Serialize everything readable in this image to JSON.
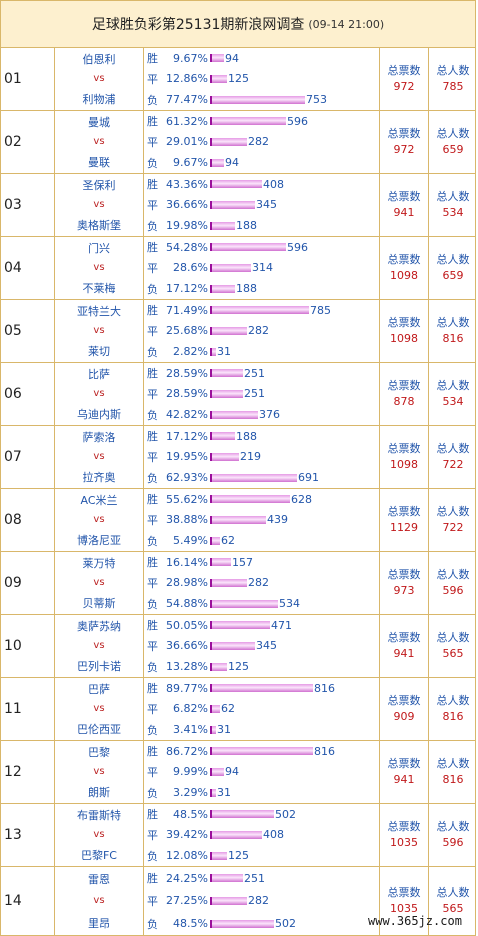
{
  "header": {
    "title": "足球胜负彩第25131期新浪网调查",
    "time": "(09-14 21:00)"
  },
  "labels": {
    "win": "胜",
    "draw": "平",
    "loss": "负",
    "vs": "vs",
    "total_votes": "总票数",
    "total_people": "总人数"
  },
  "matches": [
    {
      "no": "01",
      "home": "伯恩利",
      "away": "利物浦",
      "win_pct": "9.67%",
      "win": 94,
      "draw_pct": "12.86%",
      "draw": 125,
      "loss_pct": "77.47%",
      "loss": 753,
      "votes": "972",
      "people": "785"
    },
    {
      "no": "02",
      "home": "曼城",
      "away": "曼联",
      "win_pct": "61.32%",
      "win": 596,
      "draw_pct": "29.01%",
      "draw": 282,
      "loss_pct": "9.67%",
      "loss": 94,
      "votes": "972",
      "people": "659"
    },
    {
      "no": "03",
      "home": "圣保利",
      "away": "奥格斯堡",
      "win_pct": "43.36%",
      "win": 408,
      "draw_pct": "36.66%",
      "draw": 345,
      "loss_pct": "19.98%",
      "loss": 188,
      "votes": "941",
      "people": "534"
    },
    {
      "no": "04",
      "home": "门兴",
      "away": "不莱梅",
      "win_pct": "54.28%",
      "win": 596,
      "draw_pct": "28.6%",
      "draw": 314,
      "loss_pct": "17.12%",
      "loss": 188,
      "votes": "1098",
      "people": "659"
    },
    {
      "no": "05",
      "home": "亚特兰大",
      "away": "莱切",
      "win_pct": "71.49%",
      "win": 785,
      "draw_pct": "25.68%",
      "draw": 282,
      "loss_pct": "2.82%",
      "loss": 31,
      "votes": "1098",
      "people": "816"
    },
    {
      "no": "06",
      "home": "比萨",
      "away": "乌迪内斯",
      "win_pct": "28.59%",
      "win": 251,
      "draw_pct": "28.59%",
      "draw": 251,
      "loss_pct": "42.82%",
      "loss": 376,
      "votes": "878",
      "people": "534"
    },
    {
      "no": "07",
      "home": "萨索洛",
      "away": "拉齐奥",
      "win_pct": "17.12%",
      "win": 188,
      "draw_pct": "19.95%",
      "draw": 219,
      "loss_pct": "62.93%",
      "loss": 691,
      "votes": "1098",
      "people": "722"
    },
    {
      "no": "08",
      "home": "AC米兰",
      "away": "博洛尼亚",
      "win_pct": "55.62%",
      "win": 628,
      "draw_pct": "38.88%",
      "draw": 439,
      "loss_pct": "5.49%",
      "loss": 62,
      "votes": "1129",
      "people": "722"
    },
    {
      "no": "09",
      "home": "莱万特",
      "away": "贝蒂斯",
      "win_pct": "16.14%",
      "win": 157,
      "draw_pct": "28.98%",
      "draw": 282,
      "loss_pct": "54.88%",
      "loss": 534,
      "votes": "973",
      "people": "596"
    },
    {
      "no": "10",
      "home": "奥萨苏纳",
      "away": "巴列卡诺",
      "win_pct": "50.05%",
      "win": 471,
      "draw_pct": "36.66%",
      "draw": 345,
      "loss_pct": "13.28%",
      "loss": 125,
      "votes": "941",
      "people": "565"
    },
    {
      "no": "11",
      "home": "巴萨",
      "away": "巴伦西亚",
      "win_pct": "89.77%",
      "win": 816,
      "draw_pct": "6.82%",
      "draw": 62,
      "loss_pct": "3.41%",
      "loss": 31,
      "votes": "909",
      "people": "816"
    },
    {
      "no": "12",
      "home": "巴黎",
      "away": "朗斯",
      "win_pct": "86.72%",
      "win": 816,
      "draw_pct": "9.99%",
      "draw": 94,
      "loss_pct": "3.29%",
      "loss": 31,
      "votes": "941",
      "people": "816"
    },
    {
      "no": "13",
      "home": "布雷斯特",
      "away": "巴黎FC",
      "win_pct": "48.5%",
      "win": 502,
      "draw_pct": "39.42%",
      "draw": 408,
      "loss_pct": "12.08%",
      "loss": 125,
      "votes": "1035",
      "people": "596"
    },
    {
      "no": "14",
      "home": "雷恩",
      "away": "里昂",
      "win_pct": "24.25%",
      "win": 251,
      "draw_pct": "27.25%",
      "draw": 282,
      "loss_pct": "48.5%",
      "loss": 502,
      "votes": "1035",
      "people": "565"
    }
  ],
  "watermark": "www.365jz.com"
}
